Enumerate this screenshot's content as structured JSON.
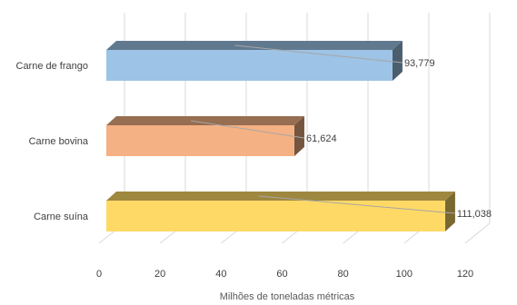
{
  "chart_data": {
    "type": "bar",
    "orientation": "horizontal",
    "style": "3d",
    "categories": [
      "Carne de frango",
      "Carne bovina",
      "Carne suína"
    ],
    "values": [
      93.779,
      61.624,
      111.038
    ],
    "value_labels": [
      "93,779",
      "61,624",
      "111,038"
    ],
    "colors": [
      "#9dc3e6",
      "#f4b183",
      "#ffd966"
    ],
    "xlabel": "Milhões de toneladas métricas",
    "ylabel": "",
    "xlim": [
      0,
      120
    ],
    "x_ticks": [
      "0",
      "20",
      "40",
      "60",
      "80",
      "100",
      "120"
    ],
    "grid": true,
    "legend": "none"
  }
}
